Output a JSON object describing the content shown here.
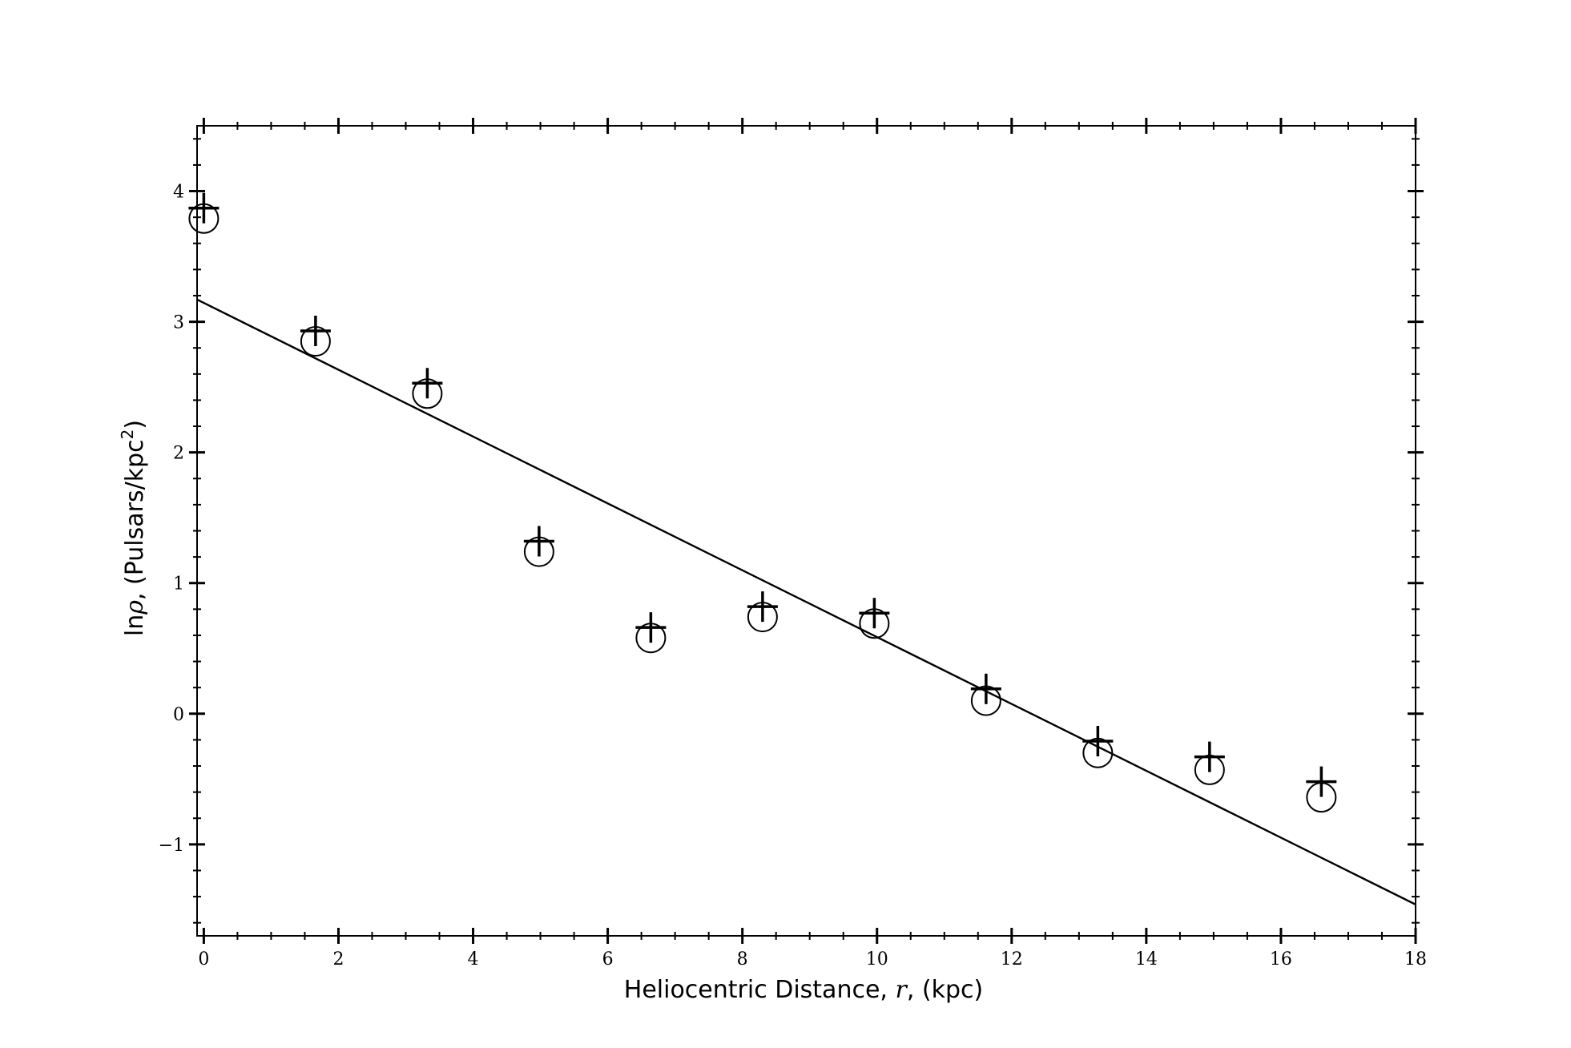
{
  "chart_data": {
    "type": "scatter",
    "xlabel": {
      "before": "Heliocentric Distance, ",
      "symbol": "r",
      "after": ", (kpc)"
    },
    "ylabel": {
      "prefix": "ln",
      "symbol": "ρ",
      "units": ", (Pulsars/kpc",
      "exponent": "2",
      "close": ")"
    },
    "xlim": [
      -0.1,
      18
    ],
    "ylim": [
      -1.7,
      4.5
    ],
    "x_ticks": [
      0,
      2,
      4,
      6,
      8,
      10,
      12,
      14,
      16,
      18
    ],
    "y_ticks": [
      -1,
      0,
      1,
      2,
      3,
      4
    ],
    "y_tick_labels": [
      "−1",
      "0",
      "1",
      "2",
      "3",
      "4"
    ],
    "x_minor_step": 0.5,
    "y_minor_step": 0.2,
    "grid": false,
    "series": [
      {
        "marker": "open-circle",
        "x": [
          0,
          1.66,
          3.32,
          4.98,
          6.64,
          8.3,
          9.96,
          11.62,
          13.28,
          14.94,
          16.6
        ],
        "y": [
          3.79,
          2.85,
          2.45,
          1.24,
          0.58,
          0.74,
          0.69,
          0.1,
          -0.3,
          -0.43,
          -0.64
        ]
      },
      {
        "marker": "plus",
        "x": [
          0,
          1.66,
          3.32,
          4.98,
          6.64,
          8.3,
          9.96,
          11.62,
          13.28,
          14.94,
          16.6
        ],
        "y": [
          3.87,
          2.93,
          2.53,
          1.32,
          0.66,
          0.82,
          0.77,
          0.19,
          -0.21,
          -0.33,
          -0.52
        ]
      }
    ],
    "fit_line": {
      "type": "line",
      "x": [
        -0.1,
        18
      ],
      "y": [
        3.17,
        -1.46
      ]
    }
  }
}
